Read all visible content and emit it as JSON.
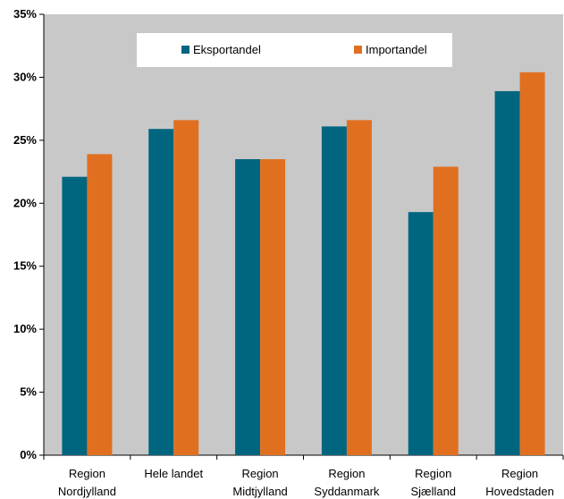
{
  "chart_data": {
    "type": "bar",
    "title": "",
    "xlabel": "",
    "ylabel": "",
    "ylim": [
      0,
      35
    ],
    "y_ticks": [
      "0%",
      "5%",
      "10%",
      "15%",
      "20%",
      "25%",
      "30%",
      "35%"
    ],
    "grid": false,
    "legend_position": "top",
    "categories": [
      [
        "Region",
        "Nordjylland"
      ],
      [
        "Hele landet"
      ],
      [
        "Region",
        "Midtjylland"
      ],
      [
        "Region",
        "Syddanmark"
      ],
      [
        "Region",
        "Sjælland"
      ],
      [
        "Region",
        "Hovedstaden"
      ]
    ],
    "series": [
      {
        "name": "Eksportandel",
        "color": "#006680",
        "values": [
          22.1,
          25.9,
          23.5,
          26.1,
          19.3,
          28.9
        ]
      },
      {
        "name": "Importandel",
        "color": "#E07020",
        "values": [
          23.9,
          26.6,
          23.5,
          26.6,
          22.9,
          30.4
        ]
      }
    ],
    "plot_background": "#C8C8C8"
  }
}
